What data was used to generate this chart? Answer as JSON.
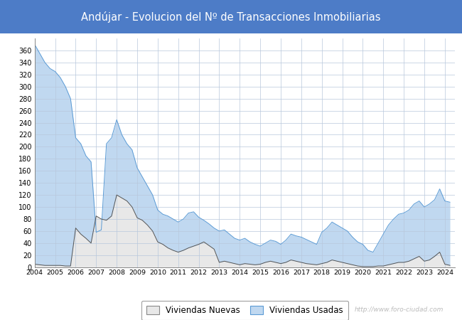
{
  "title": "Andújar - Evolucion del Nº de Transacciones Inmobiliarias",
  "title_bg_color": "#4D7CC7",
  "title_text_color": "#FFFFFF",
  "ylim": [
    0,
    380
  ],
  "yticks": [
    0,
    20,
    40,
    60,
    80,
    100,
    120,
    140,
    160,
    180,
    200,
    220,
    240,
    260,
    280,
    300,
    320,
    340,
    360
  ],
  "grid_color": "#B8C8DC",
  "legend_labels": [
    "Viviendas Nuevas",
    "Viviendas Usadas"
  ],
  "nuevas_color": "#E8E8E8",
  "nuevas_line_color": "#555555",
  "usadas_color": "#C0D8F0",
  "usadas_line_color": "#5B9BD5",
  "watermark": "http://www.foro-ciudad.com",
  "viviendas_usadas": [
    370,
    355,
    340,
    330,
    325,
    315,
    300,
    280,
    215,
    205,
    185,
    175,
    58,
    62,
    205,
    215,
    245,
    220,
    205,
    195,
    165,
    150,
    135,
    120,
    95,
    88,
    85,
    80,
    75,
    80,
    90,
    92,
    83,
    78,
    72,
    65,
    60,
    62,
    55,
    48,
    45,
    48,
    42,
    38,
    35,
    40,
    45,
    43,
    38,
    45,
    55,
    52,
    50,
    46,
    42,
    38,
    58,
    65,
    75,
    70,
    65,
    60,
    50,
    42,
    38,
    28,
    25,
    40,
    55,
    70,
    80,
    88,
    90,
    95,
    105,
    110,
    100,
    105,
    112,
    130,
    110,
    108
  ],
  "viviendas_nuevas": [
    5,
    4,
    3,
    3,
    3,
    3,
    2,
    2,
    65,
    55,
    48,
    40,
    85,
    80,
    78,
    85,
    120,
    115,
    110,
    100,
    82,
    78,
    70,
    60,
    42,
    38,
    32,
    28,
    25,
    28,
    32,
    35,
    38,
    42,
    36,
    30,
    8,
    10,
    8,
    6,
    4,
    6,
    5,
    4,
    5,
    8,
    10,
    8,
    6,
    8,
    12,
    10,
    8,
    6,
    5,
    4,
    6,
    8,
    12,
    10,
    8,
    6,
    4,
    2,
    1,
    1,
    1,
    2,
    2,
    4,
    6,
    8,
    8,
    10,
    14,
    18,
    10,
    12,
    18,
    25,
    5,
    3
  ]
}
